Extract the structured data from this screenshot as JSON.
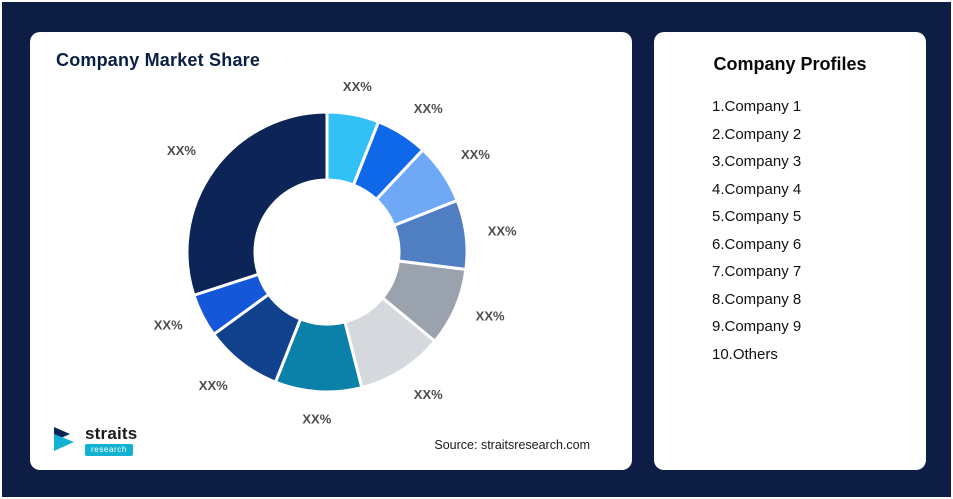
{
  "page": {
    "background": "#0d1d44"
  },
  "left_card": {
    "title": "Company Market Share",
    "source": "Source: straitsresearch.com",
    "logo": {
      "name": "straits",
      "sub": "research",
      "accent": "#14b2d2",
      "dark": "#0c2456"
    }
  },
  "right_card": {
    "title": "Company Profiles",
    "items": [
      "1.Company 1",
      "2.Company 2",
      "3.Company 3",
      "4.Company 4",
      "5.Company 5",
      "6.Company 6",
      "7.Company 7",
      "8.Company 8",
      "9.Company 9",
      "10.Others"
    ]
  },
  "chart_data": {
    "type": "pie",
    "variant": "donut",
    "title": "Company Market Share",
    "legend_position": "none",
    "segments": [
      {
        "name": "Company 1",
        "label": "XX%",
        "value": 6,
        "color": "#33c1f5"
      },
      {
        "name": "Company 2",
        "label": "XX%",
        "value": 6,
        "color": "#0f68e8"
      },
      {
        "name": "Company 3",
        "label": "XX%",
        "value": 7,
        "color": "#6fa8f5"
      },
      {
        "name": "Company 4",
        "label": "XX%",
        "value": 8,
        "color": "#4f7ec2"
      },
      {
        "name": "Company 5",
        "label": "XX%",
        "value": 9,
        "color": "#9aa2ad"
      },
      {
        "name": "Company 6",
        "label": "XX%",
        "value": 10,
        "color": "#d5d9de"
      },
      {
        "name": "Company 7",
        "label": "XX%",
        "value": 10,
        "color": "#0b80a8"
      },
      {
        "name": "Company 8",
        "label": "XX%",
        "value": 9,
        "color": "#11418c"
      },
      {
        "name": "Company 9",
        "label": "XX%",
        "value": 5,
        "color": "#1457d8"
      },
      {
        "name": "Others",
        "label": "XX%",
        "value": 30,
        "color": "#0c2456"
      }
    ]
  }
}
